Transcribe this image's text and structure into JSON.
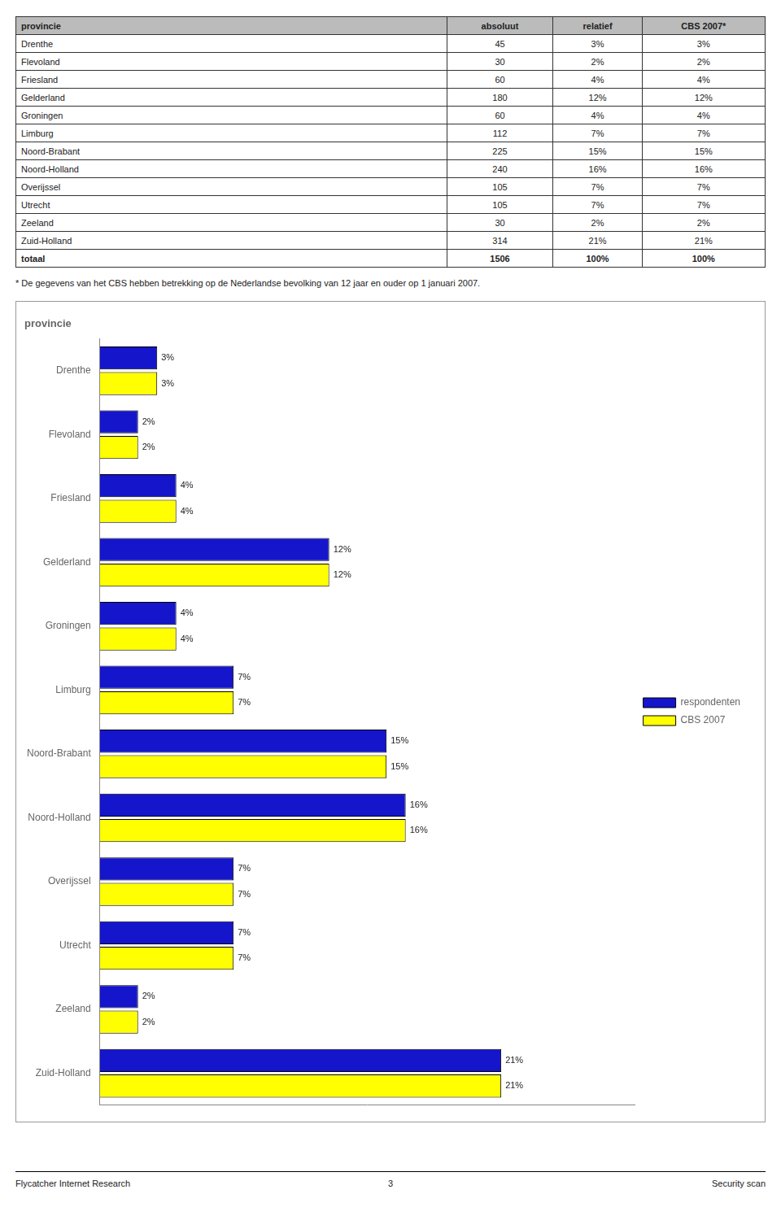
{
  "chart_data": {
    "type": "bar",
    "orientation": "horizontal",
    "title": "provincie",
    "categories": [
      "Drenthe",
      "Flevoland",
      "Friesland",
      "Gelderland",
      "Groningen",
      "Limburg",
      "Noord-Brabant",
      "Noord-Holland",
      "Overijssel",
      "Utrecht",
      "Zeeland",
      "Zuid-Holland"
    ],
    "series": [
      {
        "name": "respondenten",
        "color": "#1515CC",
        "values": [
          3,
          2,
          4,
          12,
          4,
          7,
          15,
          16,
          7,
          7,
          2,
          21
        ],
        "value_labels": [
          "3%",
          "2%",
          "4%",
          "12%",
          "4%",
          "7%",
          "15%",
          "16%",
          "7%",
          "7%",
          "2%",
          "21%"
        ]
      },
      {
        "name": "CBS 2007",
        "color": "#FFFF00",
        "values": [
          3,
          2,
          4,
          12,
          4,
          7,
          15,
          16,
          7,
          7,
          2,
          21
        ],
        "value_labels": [
          "3%",
          "2%",
          "4%",
          "12%",
          "4%",
          "7%",
          "15%",
          "16%",
          "7%",
          "7%",
          "2%",
          "21%"
        ]
      }
    ],
    "xlim": [
      0,
      28
    ],
    "grid": false,
    "legend": "right",
    "data_labels": true,
    "tick_labels": "y"
  },
  "table": {
    "headers": [
      "provincie",
      "absoluut",
      "relatief",
      "CBS 2007*"
    ],
    "rows": [
      [
        "Drenthe",
        "45",
        "3%",
        "3%"
      ],
      [
        "Flevoland",
        "30",
        "2%",
        "2%"
      ],
      [
        "Friesland",
        "60",
        "4%",
        "4%"
      ],
      [
        "Gelderland",
        "180",
        "12%",
        "12%"
      ],
      [
        "Groningen",
        "60",
        "4%",
        "4%"
      ],
      [
        "Limburg",
        "112",
        "7%",
        "7%"
      ],
      [
        "Noord-Brabant",
        "225",
        "15%",
        "15%"
      ],
      [
        "Noord-Holland",
        "240",
        "16%",
        "16%"
      ],
      [
        "Overijssel",
        "105",
        "7%",
        "7%"
      ],
      [
        "Utrecht",
        "105",
        "7%",
        "7%"
      ],
      [
        "Zeeland",
        "30",
        "2%",
        "2%"
      ],
      [
        "Zuid-Holland",
        "314",
        "21%",
        "21%"
      ],
      [
        "totaal",
        "1506",
        "100%",
        "100%"
      ]
    ]
  },
  "annotations": [
    "* De gegevens van het CBS hebben betrekking op de Nederlandse bevolking van 12 jaar en ouder op 1 januari 2007.",
    "Flycatcher Internet Research",
    "3",
    "Security scan"
  ]
}
